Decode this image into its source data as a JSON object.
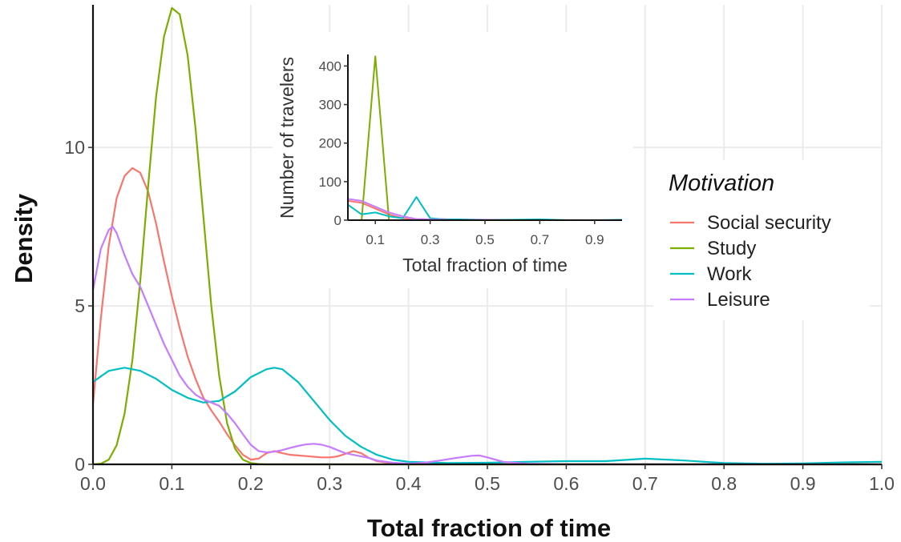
{
  "chart_data": [
    {
      "type": "line",
      "name": "main",
      "xlabel": "Total fraction of time",
      "ylabel": "Density",
      "xlim": [
        0,
        1.0
      ],
      "ylim": [
        0,
        14.5
      ],
      "xticks": [
        0.0,
        0.1,
        0.2,
        0.3,
        0.4,
        0.5,
        0.6,
        0.7,
        0.8,
        0.9,
        1.0
      ],
      "xtick_labels": [
        "0.0",
        "0.1",
        "0.2",
        "0.3",
        "0.4",
        "0.5",
        "0.6",
        "0.7",
        "0.8",
        "0.9",
        "1.0"
      ],
      "yticks": [
        0,
        5,
        10
      ],
      "ytick_labels": [
        "0",
        "5",
        "10"
      ],
      "grid": true,
      "legend": {
        "title": "Motivation",
        "placement": "right",
        "entries": [
          "Social security",
          "Study",
          "Work",
          "Leisure"
        ]
      },
      "series": [
        {
          "name": "Social security",
          "color": "#F8766D",
          "x": [
            0.0,
            0.01,
            0.02,
            0.03,
            0.04,
            0.05,
            0.06,
            0.07,
            0.08,
            0.09,
            0.1,
            0.11,
            0.12,
            0.13,
            0.14,
            0.15,
            0.16,
            0.17,
            0.18,
            0.19,
            0.2,
            0.21,
            0.22,
            0.23,
            0.24,
            0.25,
            0.26,
            0.27,
            0.28,
            0.29,
            0.3,
            0.31,
            0.32,
            0.33,
            0.34,
            0.35,
            0.36,
            0.38,
            0.4,
            0.45,
            0.5,
            0.6,
            0.7,
            0.8,
            0.9,
            1.0
          ],
          "y": [
            1.9,
            4.6,
            6.9,
            8.4,
            9.1,
            9.35,
            9.2,
            8.6,
            7.6,
            6.4,
            5.3,
            4.3,
            3.4,
            2.7,
            2.1,
            1.7,
            1.35,
            0.95,
            0.6,
            0.3,
            0.15,
            0.18,
            0.35,
            0.42,
            0.35,
            0.3,
            0.28,
            0.26,
            0.24,
            0.22,
            0.22,
            0.25,
            0.33,
            0.42,
            0.35,
            0.2,
            0.1,
            0.03,
            0.0,
            0.0,
            0.0,
            0.0,
            0.0,
            0.0,
            0.0,
            0.0
          ]
        },
        {
          "name": "Study",
          "color": "#7CAE00",
          "x": [
            0.0,
            0.01,
            0.02,
            0.03,
            0.04,
            0.05,
            0.06,
            0.07,
            0.08,
            0.09,
            0.1,
            0.11,
            0.12,
            0.13,
            0.14,
            0.15,
            0.16,
            0.17,
            0.18,
            0.19,
            0.2,
            0.21,
            0.22,
            0.25,
            0.3,
            0.4,
            0.5,
            0.6,
            0.7,
            0.8,
            0.9,
            1.0
          ],
          "y": [
            0.0,
            0.02,
            0.15,
            0.6,
            1.6,
            3.3,
            5.8,
            8.8,
            11.6,
            13.5,
            14.4,
            14.2,
            12.9,
            10.6,
            7.8,
            5.0,
            2.8,
            1.3,
            0.5,
            0.15,
            0.04,
            0.01,
            0.0,
            0.0,
            0.0,
            0.0,
            0.0,
            0.0,
            0.0,
            0.0,
            0.0,
            0.0
          ]
        },
        {
          "name": "Work",
          "color": "#00BFC4",
          "x": [
            0.0,
            0.02,
            0.04,
            0.06,
            0.08,
            0.1,
            0.12,
            0.14,
            0.16,
            0.18,
            0.2,
            0.22,
            0.23,
            0.24,
            0.26,
            0.28,
            0.3,
            0.32,
            0.34,
            0.36,
            0.38,
            0.4,
            0.45,
            0.5,
            0.55,
            0.6,
            0.65,
            0.7,
            0.75,
            0.8,
            0.85,
            0.9,
            0.95,
            1.0
          ],
          "y": [
            2.6,
            2.95,
            3.05,
            2.95,
            2.7,
            2.35,
            2.1,
            1.95,
            2.0,
            2.3,
            2.75,
            3.0,
            3.05,
            3.0,
            2.6,
            2.0,
            1.4,
            0.9,
            0.55,
            0.3,
            0.15,
            0.08,
            0.04,
            0.05,
            0.08,
            0.1,
            0.1,
            0.18,
            0.12,
            0.04,
            0.02,
            0.03,
            0.06,
            0.08
          ]
        },
        {
          "name": "Leisure",
          "color": "#C77CFF",
          "x": [
            0.0,
            0.01,
            0.02,
            0.025,
            0.03,
            0.04,
            0.05,
            0.06,
            0.07,
            0.08,
            0.09,
            0.1,
            0.11,
            0.12,
            0.13,
            0.14,
            0.15,
            0.16,
            0.17,
            0.18,
            0.19,
            0.2,
            0.21,
            0.22,
            0.23,
            0.24,
            0.25,
            0.26,
            0.27,
            0.28,
            0.29,
            0.3,
            0.31,
            0.32,
            0.33,
            0.34,
            0.35,
            0.36,
            0.38,
            0.4,
            0.42,
            0.44,
            0.46,
            0.48,
            0.49,
            0.5,
            0.52,
            0.55,
            0.6,
            0.7,
            0.8,
            0.9,
            1.0
          ],
          "y": [
            5.5,
            6.8,
            7.4,
            7.5,
            7.3,
            6.6,
            6.0,
            5.6,
            5.0,
            4.4,
            3.8,
            3.3,
            2.8,
            2.45,
            2.2,
            2.05,
            1.95,
            1.85,
            1.6,
            1.3,
            0.95,
            0.62,
            0.42,
            0.38,
            0.4,
            0.45,
            0.52,
            0.58,
            0.63,
            0.65,
            0.62,
            0.55,
            0.45,
            0.35,
            0.3,
            0.25,
            0.2,
            0.12,
            0.05,
            0.02,
            0.05,
            0.12,
            0.2,
            0.27,
            0.28,
            0.22,
            0.08,
            0.02,
            0.0,
            0.0,
            0.0,
            0.0,
            0.0
          ]
        }
      ]
    },
    {
      "type": "line",
      "name": "inset",
      "xlabel": "Total fraction of time",
      "ylabel": "Number of travelers",
      "xlim": [
        0.0,
        1.0
      ],
      "ylim": [
        0,
        430
      ],
      "xticks": [
        0.1,
        0.3,
        0.5,
        0.7,
        0.9
      ],
      "xtick_labels": [
        "0.1",
        "0.3",
        "0.5",
        "0.7",
        "0.9"
      ],
      "yticks": [
        0,
        100,
        200,
        300,
        400
      ],
      "ytick_labels": [
        "0",
        "100",
        "200",
        "300",
        "400"
      ],
      "grid": false,
      "series": [
        {
          "name": "Social security",
          "color": "#F8766D",
          "x": [
            0.0,
            0.05,
            0.1,
            0.15,
            0.2,
            0.25,
            0.3,
            0.35,
            0.4,
            0.5,
            0.6,
            0.7,
            0.8,
            0.9,
            1.0
          ],
          "y": [
            50,
            45,
            30,
            15,
            5,
            3,
            2,
            3,
            1,
            0,
            0,
            0,
            0,
            0,
            0
          ]
        },
        {
          "name": "Study",
          "color": "#7CAE00",
          "x": [
            0.0,
            0.05,
            0.1,
            0.15,
            0.2,
            0.3,
            0.5,
            0.7,
            0.9,
            1.0
          ],
          "y": [
            0,
            0,
            425,
            0,
            0,
            0,
            0,
            0,
            0,
            0
          ]
        },
        {
          "name": "Work",
          "color": "#00BFC4",
          "x": [
            0.0,
            0.05,
            0.1,
            0.15,
            0.2,
            0.25,
            0.3,
            0.35,
            0.4,
            0.5,
            0.6,
            0.7,
            0.8,
            0.9,
            1.0
          ],
          "y": [
            40,
            15,
            20,
            10,
            5,
            60,
            5,
            2,
            2,
            1,
            1,
            2,
            0,
            0,
            1
          ]
        },
        {
          "name": "Leisure",
          "color": "#C77CFF",
          "x": [
            0.0,
            0.05,
            0.1,
            0.15,
            0.2,
            0.25,
            0.3,
            0.35,
            0.4,
            0.5,
            0.6,
            0.7,
            0.8,
            0.9,
            1.0
          ],
          "y": [
            55,
            50,
            35,
            20,
            10,
            3,
            2,
            1,
            0,
            1,
            0,
            0,
            0,
            0,
            0
          ]
        }
      ]
    }
  ]
}
